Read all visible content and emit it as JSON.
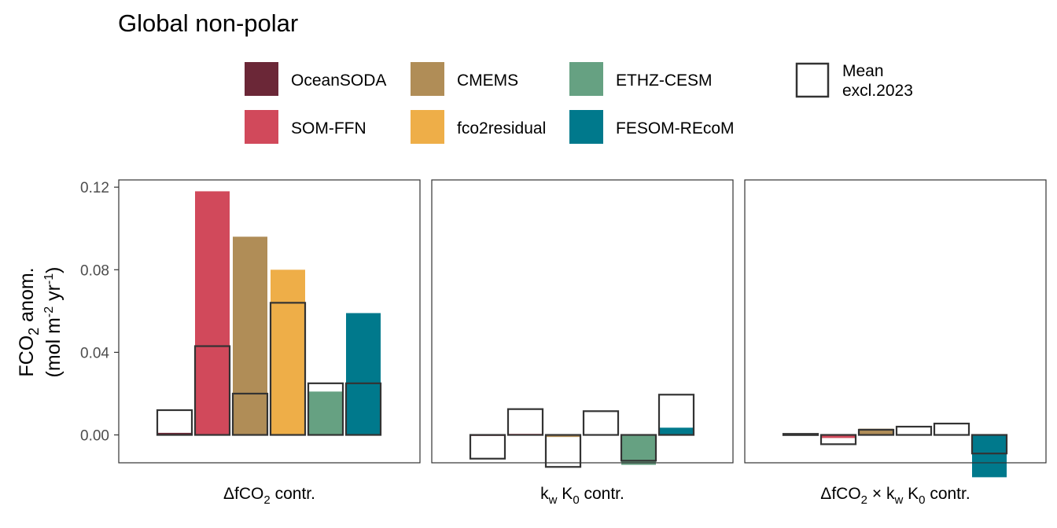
{
  "chart_data": {
    "type": "bar",
    "title": "Global non-polar",
    "ylabel": {
      "line1_main": "FCO",
      "line1_sub": "2",
      "line1_rest": " anom.",
      "line2_open": "(mol m",
      "line2_exp1": "-2",
      "line2_mid": " yr",
      "line2_exp2": "-1",
      "line2_close": ")"
    },
    "ylim": [
      -0.0135,
      0.1235
    ],
    "yticks": [
      0.0,
      0.04,
      0.08,
      0.12
    ],
    "ytick_labels": [
      "0.00",
      "0.04",
      "0.08",
      "0.12"
    ],
    "legend": {
      "position": "top",
      "entries": [
        {
          "label": "OceanSODA",
          "color": "#6b2737"
        },
        {
          "label": "SOM-FFN",
          "color": "#d1495b"
        },
        {
          "label": "CMEMS",
          "color": "#b08d57"
        },
        {
          "label": "fco2residual",
          "color": "#eeae48"
        },
        {
          "label": "ETHZ-CESM",
          "color": "#66a182"
        },
        {
          "label": "FESOM-REcoM",
          "color": "#00798c"
        }
      ],
      "mean_entry": {
        "line1": "Mean",
        "line2": "excl.2023"
      }
    },
    "panels": [
      {
        "label_parts": [
          {
            "text": "ΔfCO",
            "type": "normal"
          },
          {
            "text": "2",
            "type": "sub"
          },
          {
            "text": " contr.",
            "type": "normal"
          }
        ],
        "series": [
          {
            "name": "OceanSODA",
            "value": 0.001,
            "mean": 0.012
          },
          {
            "name": "SOM-FFN",
            "value": 0.118,
            "mean": 0.043
          },
          {
            "name": "CMEMS",
            "value": 0.096,
            "mean": 0.02
          },
          {
            "name": "fco2residual",
            "value": 0.08,
            "mean": 0.064
          },
          {
            "name": "ETHZ-CESM",
            "value": 0.021,
            "mean": 0.025
          },
          {
            "name": "FESOM-REcoM",
            "value": 0.059,
            "mean": 0.025
          }
        ]
      },
      {
        "label_parts": [
          {
            "text": "k",
            "type": "normal"
          },
          {
            "text": "w",
            "type": "sub"
          },
          {
            "text": " K",
            "type": "normal"
          },
          {
            "text": "0",
            "type": "sub"
          },
          {
            "text": " contr.",
            "type": "normal"
          }
        ],
        "series": [
          {
            "name": "OceanSODA",
            "value": -0.0005,
            "mean": -0.0115
          },
          {
            "name": "SOM-FFN",
            "value": 0.0005,
            "mean": 0.0125
          },
          {
            "name": "CMEMS",
            "value": -0.001,
            "mean": -0.0155
          },
          {
            "name": "fco2residual",
            "value": 0.0,
            "mean": 0.0115
          },
          {
            "name": "ETHZ-CESM",
            "value": -0.0145,
            "mean": -0.0125
          },
          {
            "name": "FESOM-REcoM",
            "value": 0.0035,
            "mean": 0.0195
          }
        ]
      },
      {
        "label_parts": [
          {
            "text": "ΔfCO",
            "type": "normal"
          },
          {
            "text": "2",
            "type": "sub"
          },
          {
            "text": " × k",
            "type": "normal"
          },
          {
            "text": "w",
            "type": "sub"
          },
          {
            "text": " K",
            "type": "normal"
          },
          {
            "text": "0",
            "type": "sub"
          },
          {
            "text": " contr.",
            "type": "normal"
          }
        ],
        "series": [
          {
            "name": "OceanSODA",
            "value": 0.0005,
            "mean": 0.0005
          },
          {
            "name": "SOM-FFN",
            "value": -0.0015,
            "mean": -0.0045
          },
          {
            "name": "CMEMS",
            "value": 0.003,
            "mean": 0.0025
          },
          {
            "name": "fco2residual",
            "value": 0.0,
            "mean": 0.004
          },
          {
            "name": "ETHZ-CESM",
            "value": 0.0,
            "mean": 0.0055
          },
          {
            "name": "FESOM-REcoM",
            "value": -0.0205,
            "mean": -0.009
          }
        ]
      }
    ]
  }
}
